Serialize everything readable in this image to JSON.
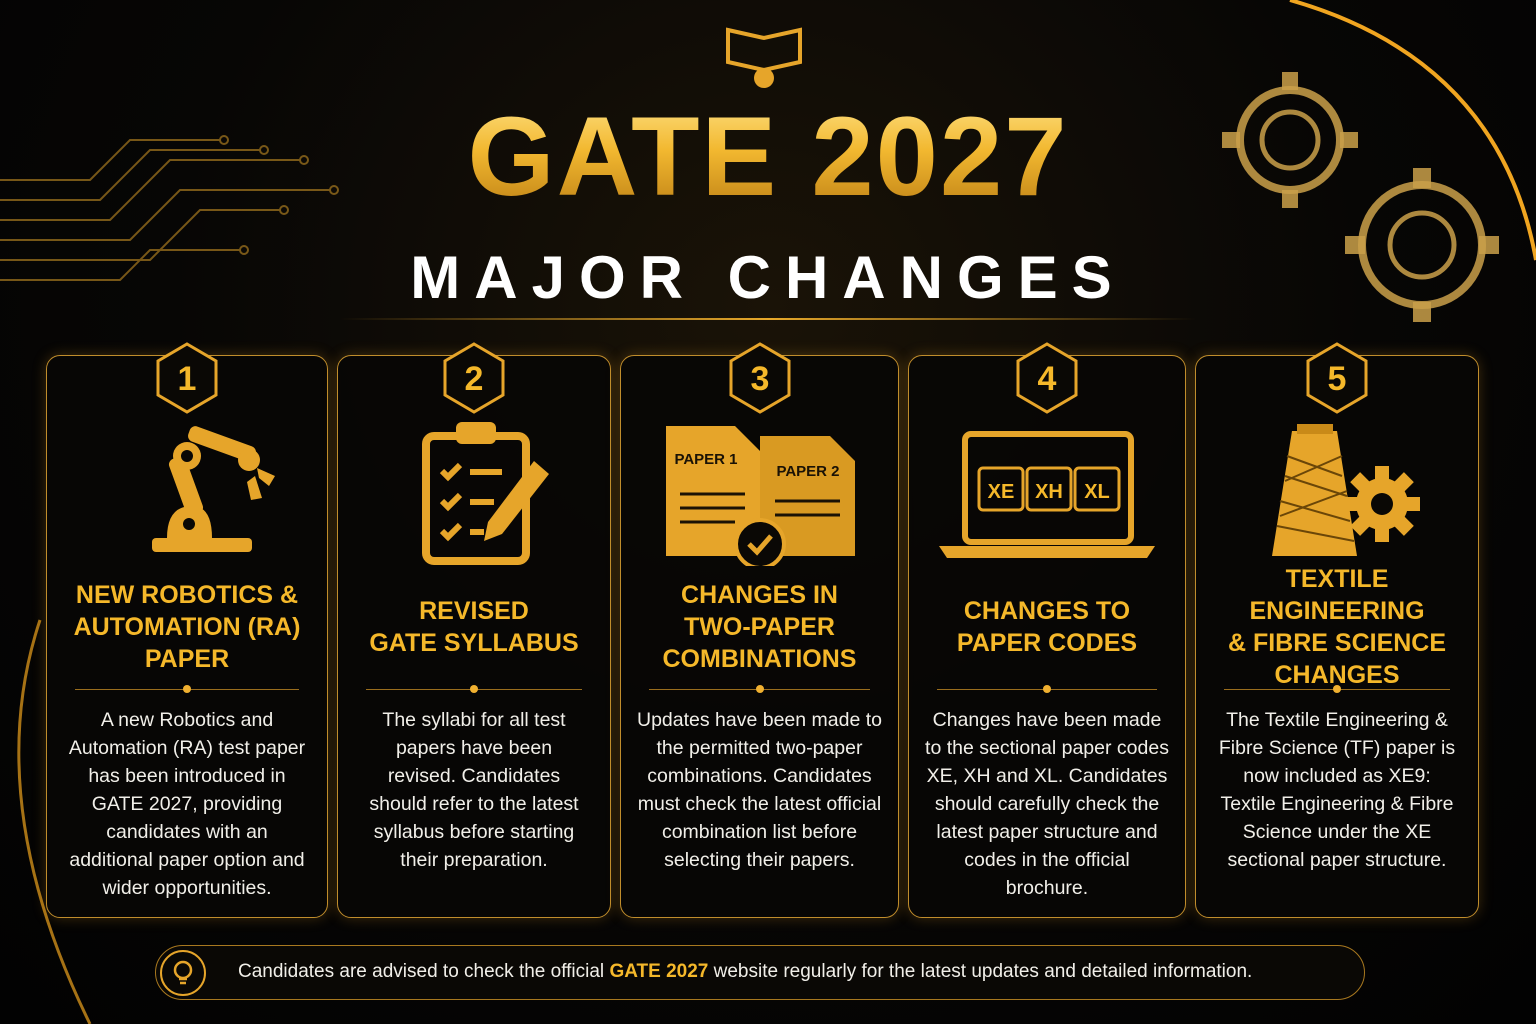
{
  "header": {
    "title": "GATE 2027",
    "subtitle": "MAJOR CHANGES"
  },
  "cards": [
    {
      "number": "1",
      "title": [
        "NEW ROBOTICS &",
        "AUTOMATION (RA)",
        "PAPER"
      ],
      "text": "A new Robotics and Automation (RA) test paper has been introduced in GATE 2027, providing candidates with an additional paper option and wider opportunities."
    },
    {
      "number": "2",
      "title": [
        "REVISED",
        "GATE SYLLABUS"
      ],
      "text": "The syllabi for all test papers have been revised. Candidates should refer to the latest syllabus before starting their preparation."
    },
    {
      "number": "3",
      "icon_labels": [
        "PAPER 1",
        "PAPER 2"
      ],
      "title": [
        "CHANGES IN",
        "TWO-PAPER",
        "COMBINATIONS"
      ],
      "text": "Updates have been made to the permitted two-paper combinations. Candidates must check the latest official combination list before selecting their papers."
    },
    {
      "number": "4",
      "icon_labels": [
        "XE",
        "XH",
        "XL"
      ],
      "title": [
        "CHANGES TO",
        "PAPER CODES"
      ],
      "text": "Changes have been made to the sectional paper codes XE, XH and XL. Candidates should carefully check the latest paper structure and codes in the official brochure."
    },
    {
      "number": "5",
      "title": [
        "TEXTILE ENGINEERING",
        "& FIBRE SCIENCE",
        "CHANGES"
      ],
      "text": "The Textile Engineering & Fibre Science (TF) paper is now included as XE9: Textile Engineering & Fibre Science under the XE sectional paper structure."
    }
  ],
  "footer": {
    "before": "Candidates are advised to check the official",
    "highlight": "GATE 2027",
    "after": "website regularly for the latest updates and detailed information."
  }
}
